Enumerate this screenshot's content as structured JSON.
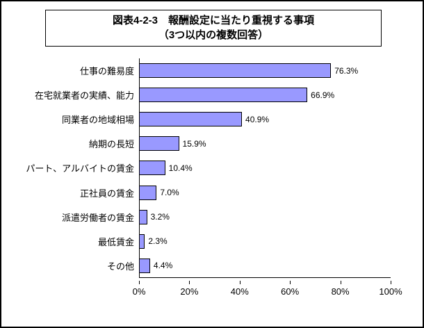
{
  "title": {
    "line1": "図表4-2-3　報酬設定に当たり重視する事項",
    "line2": "（3つ以内の複数回答）"
  },
  "chart_data": {
    "type": "bar",
    "orientation": "horizontal",
    "title": "図表4-2-3　報酬設定に当たり重視する事項（3つ以内の複数回答）",
    "categories": [
      "仕事の難易度",
      "在宅就業者の実績、能力",
      "同業者の地域相場",
      "納期の長短",
      "パート、アルバイトの賃金",
      "正社員の賃金",
      "派遣労働者の賃金",
      "最低賃金",
      "その他"
    ],
    "values": [
      76.3,
      66.9,
      40.9,
      15.9,
      10.4,
      7.0,
      3.2,
      2.3,
      4.4
    ],
    "value_labels": [
      "76.3%",
      "66.9%",
      "40.9%",
      "15.9%",
      "10.4%",
      "7.0%",
      "3.2%",
      "2.3%",
      "4.4%"
    ],
    "xlabel": "",
    "ylabel": "",
    "xlim": [
      0,
      100
    ],
    "x_ticks": [
      "0%",
      "20%",
      "40%",
      "60%",
      "80%",
      "100%"
    ],
    "grid": false,
    "legend": false,
    "bar_color": "#9999FF",
    "bar_border_color": "#000000",
    "axis_color": "#000000"
  }
}
